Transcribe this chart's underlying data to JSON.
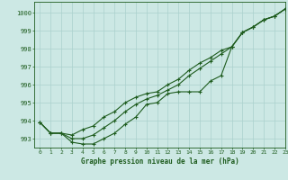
{
  "title": "Graphe pression niveau de la mer (hPa)",
  "background_color": "#cce8e4",
  "grid_color": "#aad0cc",
  "line_color": "#1e5c1e",
  "xlim": [
    -0.5,
    23
  ],
  "ylim": [
    992.5,
    1000.6
  ],
  "yticks": [
    993,
    994,
    995,
    996,
    997,
    998,
    999,
    1000
  ],
  "xticks": [
    0,
    1,
    2,
    3,
    4,
    5,
    6,
    7,
    8,
    9,
    10,
    11,
    12,
    13,
    14,
    15,
    16,
    17,
    18,
    19,
    20,
    21,
    22,
    23
  ],
  "line1": [
    993.9,
    993.3,
    993.3,
    992.8,
    992.7,
    992.7,
    993.0,
    993.3,
    993.8,
    994.2,
    994.9,
    995.0,
    995.5,
    995.6,
    995.6,
    995.6,
    996.2,
    996.5,
    998.1,
    998.9,
    999.2,
    999.6,
    999.8,
    1000.2
  ],
  "line2": [
    993.9,
    993.3,
    993.3,
    993.2,
    993.5,
    993.7,
    994.2,
    994.5,
    995.0,
    995.3,
    995.5,
    995.6,
    996.0,
    996.3,
    996.8,
    997.2,
    997.5,
    997.9,
    998.1,
    998.9,
    999.2,
    999.6,
    999.8,
    1000.2
  ],
  "line3": [
    993.9,
    993.3,
    993.3,
    993.0,
    993.0,
    993.2,
    993.6,
    994.0,
    994.5,
    994.9,
    995.2,
    995.4,
    995.7,
    996.0,
    996.5,
    996.9,
    997.3,
    997.7,
    998.1,
    998.9,
    999.2,
    999.6,
    999.8,
    1000.2
  ],
  "ylabel_fontsize": 5.0,
  "xlabel_fontsize": 4.5,
  "title_fontsize": 5.5,
  "linewidth": 0.8,
  "markersize": 2.5
}
